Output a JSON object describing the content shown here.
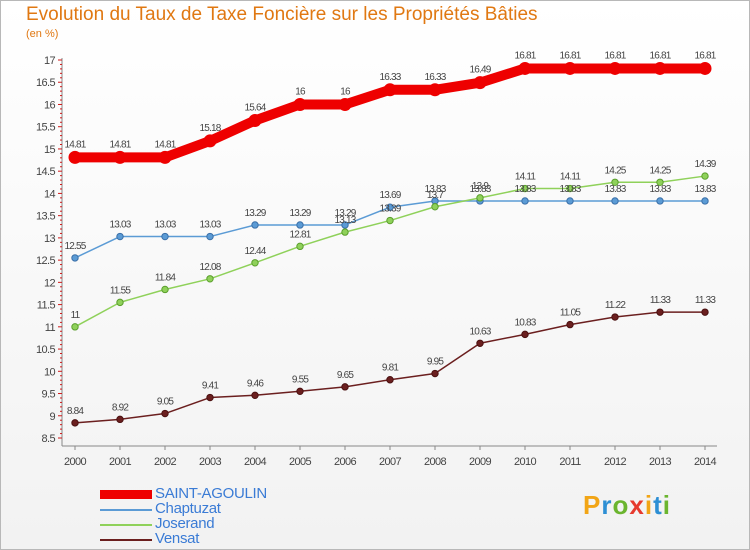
{
  "title": "Evolution du Taux de Taxe Foncière sur les Propriétés Bâties",
  "unit_label": "(en %)",
  "brand": {
    "letters": [
      "P",
      "r",
      "o",
      "x",
      "i",
      "t",
      "i"
    ],
    "colors": [
      "#f2a516",
      "#2d8fd4",
      "#6bb52f",
      "#e63a2e",
      "#f2a516",
      "#2d8fd4",
      "#6bb52f"
    ]
  },
  "chart_data": {
    "type": "line",
    "title": "Evolution du Taux de Taxe Foncière sur les Propriétés Bâties",
    "ylabel": "(en %)",
    "xlabel": "",
    "ylim": [
      8.5,
      17
    ],
    "yticks": [
      8.5,
      9,
      9.5,
      10,
      10.5,
      11,
      11.5,
      12,
      12.5,
      13,
      13.5,
      14,
      14.5,
      15,
      15.5,
      16,
      16.5,
      17
    ],
    "x": [
      "2000",
      "2001",
      "2002",
      "2003",
      "2004",
      "2005",
      "2006",
      "2007",
      "2008",
      "2009",
      "2010",
      "2011",
      "2012",
      "2013",
      "2014"
    ],
    "series": [
      {
        "name": "SAINT-AGOULIN",
        "color": "#ee0000",
        "values": [
          14.81,
          14.81,
          14.81,
          15.18,
          15.64,
          16,
          16,
          16.33,
          16.33,
          16.49,
          16.81,
          16.81,
          16.81,
          16.81,
          16.81
        ]
      },
      {
        "name": "Chaptuzat",
        "color": "#5b9bd5",
        "values": [
          12.55,
          13.03,
          13.03,
          13.03,
          13.29,
          13.29,
          13.29,
          13.69,
          13.83,
          13.83,
          13.83,
          13.83,
          13.83,
          13.83,
          13.83
        ]
      },
      {
        "name": "Joserand",
        "color": "#8fd15a",
        "values": [
          11,
          11.55,
          11.84,
          12.08,
          12.44,
          12.81,
          13.13,
          13.39,
          13.7,
          13.9,
          14.11,
          14.11,
          14.25,
          14.25,
          14.39
        ]
      },
      {
        "name": "Vensat",
        "color": "#6b1f1f",
        "values": [
          8.84,
          8.92,
          9.05,
          9.41,
          9.46,
          9.55,
          9.65,
          9.81,
          9.95,
          10.63,
          10.83,
          11.05,
          11.22,
          11.33,
          11.33
        ]
      }
    ],
    "data_labels": [
      [
        "14.81",
        "14.81",
        "14.81",
        "15.18",
        "15.64",
        "16",
        "16",
        "16.33",
        "16.33",
        "16.49",
        "16.81",
        "16.81",
        "16.81",
        "16.81",
        "16.81"
      ],
      [
        "12.55",
        "13.03",
        "13.03",
        "13.03",
        "13.29",
        "13.29",
        "13.29",
        "13.69",
        "13.83",
        "13.83",
        "13.83",
        "13.83",
        "13.83",
        "13.83",
        "13.83"
      ],
      [
        "11",
        "11.55",
        "11.84",
        "12.08",
        "12.44",
        "12.81",
        "13.13",
        "13.39",
        "13.7",
        "13.9",
        "14.11",
        "14.11",
        "14.25",
        "14.25",
        "14.39"
      ],
      [
        "8.84",
        "8.92",
        "9.05",
        "9.41",
        "9.46",
        "9.55",
        "9.65",
        "9.81",
        "9.95",
        "10.63",
        "10.83",
        "11.05",
        "11.22",
        "11.33",
        "11.33"
      ]
    ],
    "grid": false,
    "legend": "bottom-left"
  }
}
